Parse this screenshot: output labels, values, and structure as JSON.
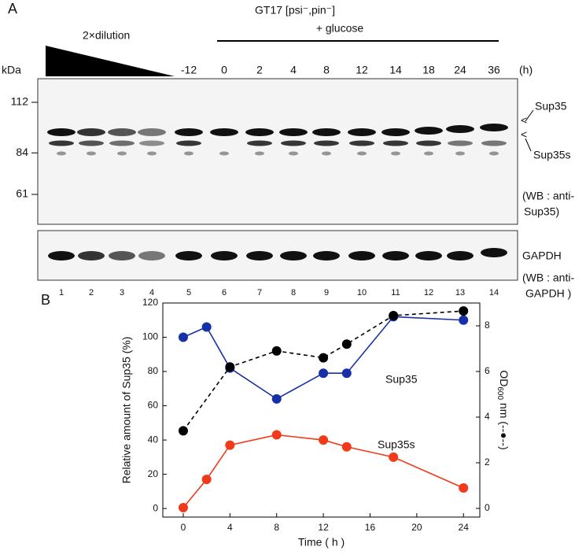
{
  "panel_a": {
    "label": "A",
    "dilution": "2×dilution",
    "strain": "GT17 [psi⁻,pin⁻]",
    "condition": "+ glucose",
    "kda": "kDa",
    "times": [
      "-12",
      "0",
      "2",
      "4",
      "8",
      "12",
      "14",
      "18",
      "24",
      "36"
    ],
    "time_unit": "(h)",
    "markers": [
      112,
      84,
      61
    ],
    "band_labels": [
      "Sup35",
      "Sup35s"
    ],
    "wb1": [
      "(WB : anti-",
      "Sup35)"
    ],
    "gapdh": "GAPDH",
    "wb2": [
      "(WB : anti-",
      "GAPDH )"
    ],
    "lanes": [
      "1",
      "2",
      "3",
      "4",
      "5",
      "6",
      "7",
      "8",
      "9",
      "10",
      "11",
      "12",
      "13",
      "14"
    ]
  },
  "chart_data": {
    "type": "line",
    "panel": "B",
    "x_label": "Time ( h )",
    "y_label": "Relative amount of Sup35 (%)",
    "y2_label": {
      "main": "OD",
      "sub": "600",
      "rest": " nm (--●--)"
    },
    "xlim": [
      -1.75,
      25.4
    ],
    "xticks": [
      0,
      4,
      8,
      12,
      16,
      20,
      24
    ],
    "ylim": [
      -5,
      120
    ],
    "yticks": [
      0,
      20,
      40,
      60,
      80,
      100,
      120
    ],
    "y2lim": [
      -0.38,
      9
    ],
    "y2ticks": [
      0,
      2,
      4,
      6,
      8
    ],
    "series": [
      {
        "name": "Sup35",
        "color": "#1530a8",
        "x": [
          0,
          2,
          4,
          8,
          12,
          14,
          18,
          24
        ],
        "values": [
          100,
          106,
          82,
          64,
          79,
          79,
          112,
          110
        ]
      },
      {
        "name": "Sup35s",
        "color": "#f03a1a",
        "label_color": "#1e8a1e",
        "x": [
          0,
          2,
          4,
          8,
          12,
          14,
          18,
          24
        ],
        "values": [
          0.5,
          17,
          37,
          43,
          40,
          36,
          30,
          12
        ]
      },
      {
        "name": null,
        "color": "#000000",
        "axis": "y2",
        "dashed": true,
        "x": [
          0,
          4,
          8,
          12,
          14,
          18,
          24
        ],
        "values": [
          3.4,
          6.2,
          6.9,
          6.6,
          7.2,
          8.45,
          8.65
        ]
      }
    ]
  }
}
